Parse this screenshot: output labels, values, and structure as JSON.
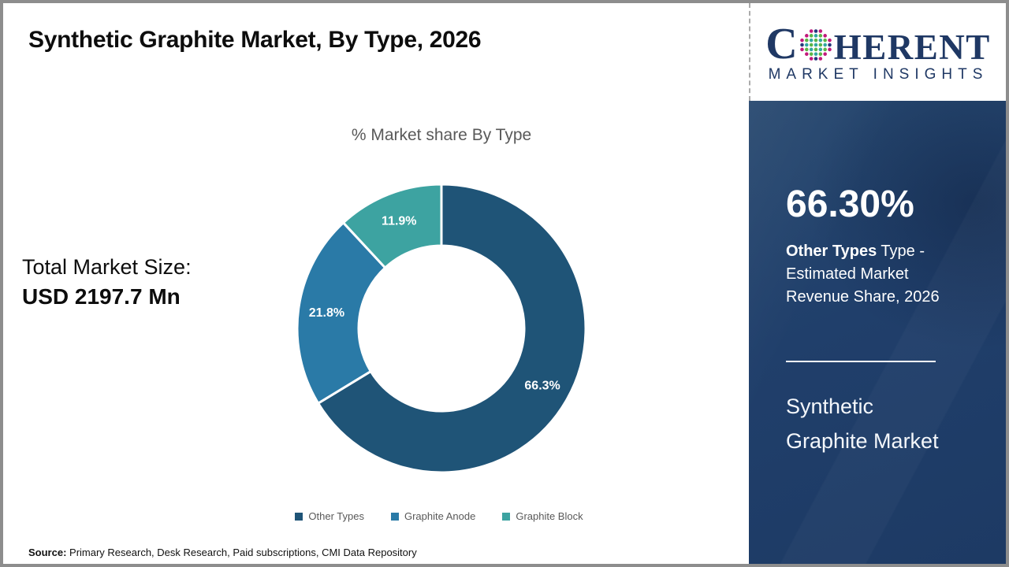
{
  "header": {
    "title": "Synthetic Graphite Market, By Type, 2026"
  },
  "logo": {
    "brand_c": "C",
    "brand_rest": "HERENT",
    "subtitle": "MARKET INSIGHTS",
    "navy": "#1F3864",
    "globe": {
      "teal": "#2FA8A2",
      "green": "#5BB546",
      "magenta": "#C2187B",
      "blue": "#27377B"
    }
  },
  "chart_data": {
    "type": "pie",
    "donut": true,
    "title": "% Market share By Type",
    "categories": [
      "Other Types",
      "Graphite Anode",
      "Graphite Block"
    ],
    "values": [
      66.3,
      21.8,
      11.9
    ],
    "labels": [
      "66.3%",
      "21.8%",
      "11.9%"
    ],
    "colors": [
      "#1F5477",
      "#2A7AA7",
      "#3DA3A1"
    ],
    "start_angle_deg_from_top": 0,
    "direction": "clockwise",
    "separator_color": "#FFFFFF",
    "legend_position": "bottom"
  },
  "stats": {
    "total_label": "Total Market Size:",
    "total_value": "USD 2197.7 Mn"
  },
  "sidebar": {
    "share_value": "66.30%",
    "desc_bold": "Other Types",
    "desc_rest": " Type - Estimated Market Revenue Share, 2026",
    "market_line1": "Synthetic",
    "market_line2": "Graphite Market",
    "bg": "#203F6B"
  },
  "source": {
    "prefix": "Source:",
    "text": " Primary Research, Desk Research, Paid subscriptions, CMI Data Repository"
  }
}
